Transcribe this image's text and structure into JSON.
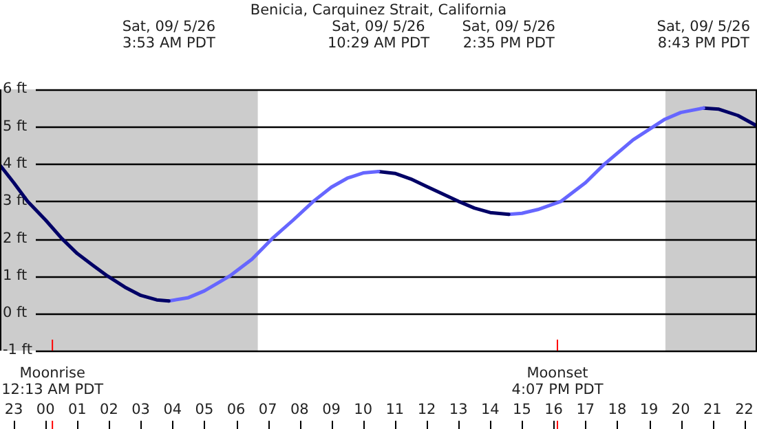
{
  "chart_data": {
    "type": "line",
    "title": "Benicia, Carquinez Strait, California",
    "xlim": [
      "--09-04T22:34",
      "--09-05T22:24"
    ],
    "xticks": [
      {
        "value": "--09-04T23:00",
        "label": "23"
      },
      {
        "value": "--09-05T00:00",
        "label": "00"
      },
      {
        "value": "--09-05T01:00",
        "label": "01"
      },
      {
        "value": "--09-05T02:00",
        "label": "02"
      },
      {
        "value": "--09-05T03:00",
        "label": "03"
      },
      {
        "value": "--09-05T04:00",
        "label": "04"
      },
      {
        "value": "--09-05T05:00",
        "label": "05"
      },
      {
        "value": "--09-05T06:00",
        "label": "06"
      },
      {
        "value": "--09-05T07:00",
        "label": "07"
      },
      {
        "value": "--09-05T08:00",
        "label": "08"
      },
      {
        "value": "--09-05T09:00",
        "label": "09"
      },
      {
        "value": "--09-05T10:00",
        "label": "10"
      },
      {
        "value": "--09-05T11:00",
        "label": "11"
      },
      {
        "value": "--09-05T12:00",
        "label": "12"
      },
      {
        "value": "--09-05T13:00",
        "label": "13"
      },
      {
        "value": "--09-05T14:00",
        "label": "14"
      },
      {
        "value": "--09-05T15:00",
        "label": "15"
      },
      {
        "value": "--09-05T16:00",
        "label": "16"
      },
      {
        "value": "--09-05T17:00",
        "label": "17"
      },
      {
        "value": "--09-05T18:00",
        "label": "18"
      },
      {
        "value": "--09-05T19:00",
        "label": "19"
      },
      {
        "value": "--09-05T20:00",
        "label": "20"
      },
      {
        "value": "--09-05T21:00",
        "label": "21"
      },
      {
        "value": "--09-05T22:00",
        "label": "22"
      }
    ],
    "ylim": [
      -1,
      6
    ],
    "yticks": [
      {
        "value": -1,
        "label": "-1 ft"
      },
      {
        "value": 0,
        "label": "0 ft"
      },
      {
        "value": 1,
        "label": "1 ft"
      },
      {
        "value": 2,
        "label": "2 ft"
      },
      {
        "value": 3,
        "label": "3 ft"
      },
      {
        "value": 4,
        "label": "4 ft"
      },
      {
        "value": 5,
        "label": "5 ft"
      },
      {
        "value": 6,
        "label": "6 ft"
      }
    ],
    "grid": "y",
    "legend": false,
    "marker": "none",
    "line_style": "solid",
    "series": [
      {
        "color": "#000066",
        "x": [
          "--09-04T22:34",
          "--09-04T23:00",
          "--09-04T23:26",
          "--09-05T00:00",
          "--09-05T00:31",
          "--09-05T01:00",
          "--09-05T01:30",
          "--09-05T01:57",
          "--09-05T02:30",
          "--09-05T03:00",
          "--09-05T03:30",
          "--09-05T03:53"
        ],
        "values": [
          3.97,
          3.5,
          3.0,
          2.5,
          2.0,
          1.6,
          1.28,
          1.0,
          0.7,
          0.48,
          0.36,
          0.33
        ]
      },
      {
        "color": "#6666ff",
        "x": [
          "--09-05T03:53",
          "--09-05T04:30",
          "--09-05T05:00",
          "--09-05T05:30",
          "--09-05T05:48",
          "--09-05T06:30",
          "--09-05T07:08",
          "--09-05T07:48",
          "--09-05T08:26",
          "--09-05T09:00",
          "--09-05T09:30",
          "--09-05T10:00",
          "--09-05T10:29"
        ],
        "values": [
          0.33,
          0.42,
          0.6,
          0.85,
          1.0,
          1.45,
          2.0,
          2.5,
          3.0,
          3.38,
          3.62,
          3.76,
          3.8
        ]
      },
      {
        "color": "#000066",
        "x": [
          "--09-05T10:29",
          "--09-05T11:00",
          "--09-05T11:30",
          "--09-05T12:00",
          "--09-05T12:30",
          "--09-05T13:00",
          "--09-05T13:30",
          "--09-05T14:00",
          "--09-05T14:35"
        ],
        "values": [
          3.8,
          3.75,
          3.6,
          3.4,
          3.2,
          3.0,
          2.82,
          2.7,
          2.65
        ]
      },
      {
        "color": "#6666ff",
        "x": [
          "--09-05T14:35",
          "--09-05T15:00",
          "--09-05T15:30",
          "--09-05T16:00",
          "--09-05T16:14",
          "--09-05T17:00",
          "--09-05T17:36",
          "--09-05T18:30",
          "--09-05T19:08",
          "--09-05T19:30",
          "--09-05T20:00",
          "--09-05T20:43"
        ],
        "values": [
          2.65,
          2.68,
          2.78,
          2.93,
          3.0,
          3.5,
          4.0,
          4.65,
          5.0,
          5.2,
          5.38,
          5.5
        ]
      },
      {
        "color": "#000066",
        "x": [
          "--09-05T20:43",
          "--09-05T21:12",
          "--09-05T21:48",
          "--09-05T22:24"
        ],
        "values": [
          5.5,
          5.47,
          5.3,
          5.02
        ]
      }
    ],
    "bands": [
      {
        "axis": "x",
        "from": "--09-04T22:34",
        "to": "--09-05T06:41",
        "color": "#cccccc"
      },
      {
        "axis": "x",
        "from": "--09-05T19:31",
        "to": "--09-05T22:24",
        "color": "#cccccc"
      }
    ],
    "ref_lines": [
      {
        "axis": "x",
        "value": "--09-05T00:13",
        "label": "Moonrise\n12:13 AM PDT",
        "color": "#ff0000"
      },
      {
        "axis": "x",
        "value": "--09-05T16:07",
        "label": "Moonset\n4:07 PM PDT",
        "color": "#ff0000"
      }
    ],
    "annotations": [
      "Sat, 09/ 5/26\n3:53 AM PDT",
      "Sat, 09/ 5/26\n10:29 AM PDT",
      "Sat, 09/ 5/26\n2:35 PM PDT",
      "Sat, 09/ 5/26\n8:43 PM PDT"
    ]
  }
}
